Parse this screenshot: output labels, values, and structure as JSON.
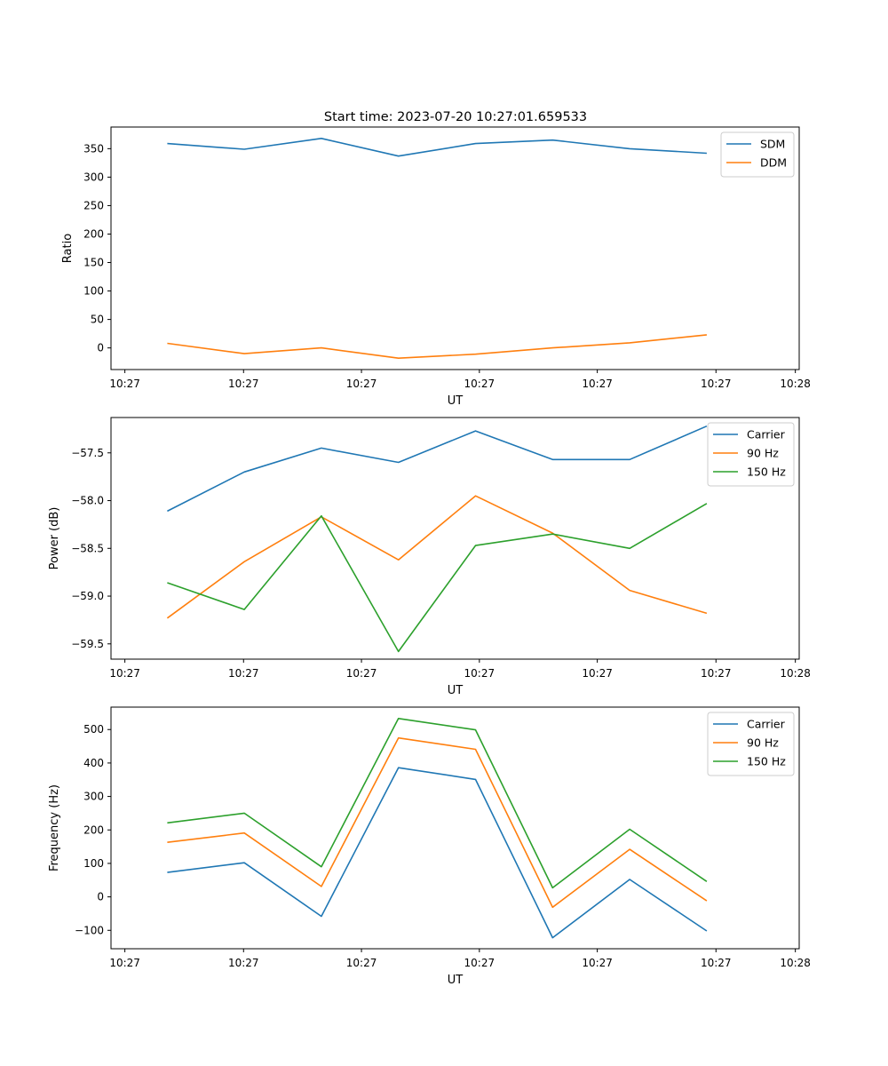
{
  "figure_title": "Start time: 2023-07-20 10:27:01.659533",
  "chart_data": [
    {
      "type": "line",
      "xlabel": "UT",
      "ylabel": "Ratio",
      "x": [
        1,
        2,
        3,
        4,
        5,
        6,
        7,
        8
      ],
      "xlim": [
        0.27,
        9.2
      ],
      "x_ticks": [
        0.45,
        1.99,
        3.52,
        5.05,
        6.58,
        8.12,
        9.15
      ],
      "x_tick_labels": [
        "10:27",
        "10:27",
        "10:27",
        "10:27",
        "10:27",
        "10:27",
        "10:28"
      ],
      "ylim": [
        -38,
        388
      ],
      "y_ticks": [
        0,
        50,
        100,
        150,
        200,
        250,
        300,
        350
      ],
      "y_tick_labels": [
        "0",
        "50",
        "100",
        "150",
        "200",
        "250",
        "300",
        "350"
      ],
      "legend_position": "top-right",
      "series": [
        {
          "name": "SDM",
          "color": "#1f77b4",
          "values": [
            359,
            349,
            368,
            337,
            359,
            365,
            350,
            342
          ]
        },
        {
          "name": "DDM",
          "color": "#ff7f0e",
          "values": [
            8,
            -10,
            0,
            -18,
            -11,
            0,
            9,
            23
          ]
        }
      ]
    },
    {
      "type": "line",
      "xlabel": "UT",
      "ylabel": "Power (dB)",
      "x": [
        1,
        2,
        3,
        4,
        5,
        6,
        7,
        8
      ],
      "xlim": [
        0.27,
        9.2
      ],
      "x_ticks": [
        0.45,
        1.99,
        3.52,
        5.05,
        6.58,
        8.12,
        9.15
      ],
      "x_tick_labels": [
        "10:27",
        "10:27",
        "10:27",
        "10:27",
        "10:27",
        "10:27",
        "10:28"
      ],
      "ylim": [
        -59.66,
        -57.13
      ],
      "y_ticks": [
        -57.5,
        -58.0,
        -58.5,
        -59.0,
        -59.5
      ],
      "y_tick_labels": [
        "−57.5",
        "−58.0",
        "−58.5",
        "−59.0",
        "−59.5"
      ],
      "legend_position": "top-right",
      "series": [
        {
          "name": "Carrier",
          "color": "#1f77b4",
          "values": [
            -58.11,
            -57.7,
            -57.45,
            -57.6,
            -57.27,
            -57.57,
            -57.57,
            -57.22
          ]
        },
        {
          "name": "90 Hz",
          "color": "#ff7f0e",
          "values": [
            -59.23,
            -58.64,
            -58.17,
            -58.62,
            -57.95,
            -58.34,
            -58.94,
            -59.18
          ]
        },
        {
          "name": "150 Hz",
          "color": "#2ca02c",
          "values": [
            -58.86,
            -59.14,
            -58.16,
            -59.58,
            -58.47,
            -58.35,
            -58.5,
            -58.03
          ]
        }
      ]
    },
    {
      "type": "line",
      "xlabel": "UT",
      "ylabel": "Frequency (Hz)",
      "x": [
        1,
        2,
        3,
        4,
        5,
        6,
        7,
        8
      ],
      "xlim": [
        0.27,
        9.2
      ],
      "x_ticks": [
        0.45,
        1.99,
        3.52,
        5.05,
        6.58,
        8.12,
        9.15
      ],
      "x_tick_labels": [
        "10:27",
        "10:27",
        "10:27",
        "10:27",
        "10:27",
        "10:27",
        "10:28"
      ],
      "ylim": [
        -155,
        567
      ],
      "y_ticks": [
        -100,
        0,
        100,
        200,
        300,
        400,
        500
      ],
      "y_tick_labels": [
        "−100",
        "0",
        "100",
        "200",
        "300",
        "400",
        "500"
      ],
      "legend_position": "top-right",
      "series": [
        {
          "name": "Carrier",
          "color": "#1f77b4",
          "values": [
            73,
            102,
            -58,
            386,
            351,
            -122,
            52,
            -102
          ]
        },
        {
          "name": "90 Hz",
          "color": "#ff7f0e",
          "values": [
            163,
            191,
            31,
            475,
            441,
            -31,
            142,
            -12
          ]
        },
        {
          "name": "150 Hz",
          "color": "#2ca02c",
          "values": [
            221,
            250,
            90,
            533,
            499,
            27,
            202,
            46
          ]
        }
      ]
    }
  ]
}
